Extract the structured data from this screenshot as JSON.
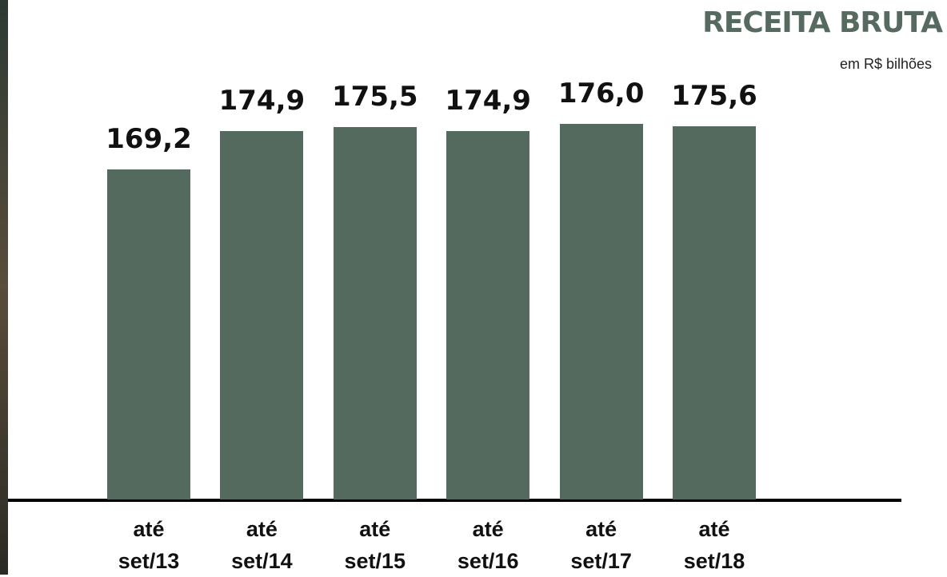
{
  "chart_data": {
    "type": "bar",
    "title": "RECEITA BRUTA",
    "subtitle": "em R$ bilhões",
    "categories": [
      "até set/13",
      "até set/14",
      "até set/15",
      "até set/16",
      "até set/17",
      "até set/18"
    ],
    "values": [
      169.2,
      174.9,
      175.5,
      174.9,
      176.0,
      175.6
    ],
    "value_labels": [
      "169,2",
      "174,9",
      "175,5",
      "174,9",
      "176,0",
      "175,6"
    ],
    "color": "#546a5f",
    "ylim": [
      120,
      180
    ]
  }
}
